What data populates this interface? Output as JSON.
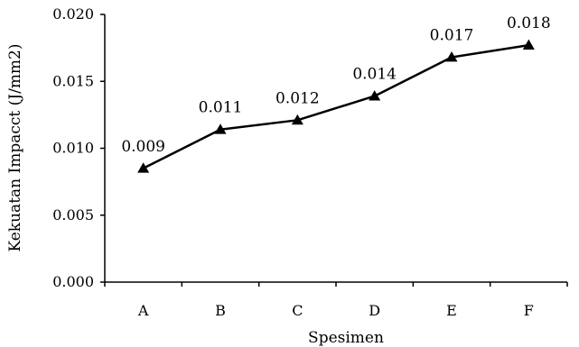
{
  "chart_data": {
    "type": "line",
    "title": "",
    "xlabel": "Spesimen",
    "ylabel": "Kekuatan Impacct (J/mm2)",
    "categories": [
      "A",
      "B",
      "C",
      "D",
      "E",
      "F"
    ],
    "values": [
      0.0085,
      0.0114,
      0.0121,
      0.0139,
      0.0168,
      0.0177
    ],
    "data_labels": [
      "0.009",
      "0.011",
      "0.012",
      "0.014",
      "0.017",
      "0.018"
    ],
    "yticks": [
      "0.000",
      "0.005",
      "0.010",
      "0.015",
      "0.020"
    ],
    "ylim": [
      0,
      0.02
    ],
    "grid": false,
    "legend": "none",
    "marker": "triangle",
    "line_color": "#000000"
  }
}
